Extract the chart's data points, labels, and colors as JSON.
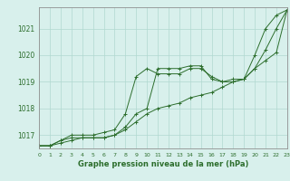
{
  "bg_color": "#d8f0ec",
  "grid_color": "#b0d8d0",
  "line_color": "#2d6e2d",
  "marker_color": "#2d6e2d",
  "title": "Graphe pression niveau de la mer (hPa)",
  "title_color": "#2d6e2d",
  "xlim": [
    0,
    23
  ],
  "ylim": [
    1016.5,
    1021.8
  ],
  "yticks": [
    1017,
    1018,
    1019,
    1020,
    1021
  ],
  "xticks": [
    0,
    1,
    2,
    3,
    4,
    5,
    6,
    7,
    8,
    9,
    10,
    11,
    12,
    13,
    14,
    15,
    16,
    17,
    18,
    19,
    20,
    21,
    22,
    23
  ],
  "series1": [
    1016.6,
    1016.6,
    1016.8,
    1016.9,
    1016.9,
    1016.9,
    1016.9,
    1017.0,
    1017.3,
    1017.8,
    1018.0,
    1019.5,
    1019.5,
    1019.5,
    1019.6,
    1019.6,
    1019.1,
    1019.0,
    1019.0,
    1019.1,
    1020.0,
    1021.0,
    1021.5,
    1021.7
  ],
  "series2": [
    1016.6,
    1016.6,
    1016.8,
    1017.0,
    1017.0,
    1017.0,
    1017.1,
    1017.2,
    1017.8,
    1019.2,
    1019.5,
    1019.3,
    1019.3,
    1019.3,
    1019.5,
    1019.5,
    1019.2,
    1019.0,
    1019.1,
    1019.1,
    1019.5,
    1020.2,
    1021.0,
    1021.7
  ],
  "series3": [
    1016.6,
    1016.6,
    1016.7,
    1016.8,
    1016.9,
    1016.9,
    1016.9,
    1017.0,
    1017.2,
    1017.5,
    1017.8,
    1018.0,
    1018.1,
    1018.2,
    1018.4,
    1018.5,
    1018.6,
    1018.8,
    1019.0,
    1019.1,
    1019.5,
    1019.8,
    1020.1,
    1021.7
  ]
}
